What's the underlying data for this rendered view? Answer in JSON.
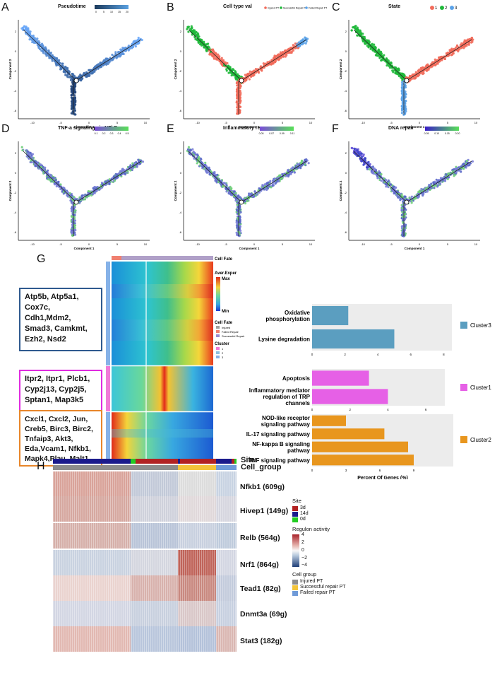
{
  "panels_top": [
    {
      "letter": "A",
      "title": "Pseudotime",
      "legend_ticks": [
        "0",
        "5",
        "10",
        "15",
        "20"
      ],
      "xlabel": "Component 1",
      "ylabel": "Component 2",
      "xticks": [
        "-10",
        "-5",
        "0",
        "5",
        "10"
      ],
      "yticks": [
        "2",
        "0",
        "-2",
        "-4",
        "-6"
      ]
    },
    {
      "letter": "B",
      "title": "Cell type val",
      "legend_items": [
        "Injured PT",
        "Successful Repair PT",
        "Failed Repair PT"
      ],
      "legend_colors": [
        "#f26b5b",
        "#1fb83a",
        "#5aa2e8"
      ],
      "xlabel": "Component 1",
      "ylabel": "Component 2",
      "xticks": [
        "-10",
        "-5",
        "0",
        "5",
        "10"
      ],
      "yticks": [
        "2",
        "0",
        "-2",
        "-4",
        "-6"
      ]
    },
    {
      "letter": "C",
      "title": "State",
      "legend_items": [
        "1",
        "2",
        "3"
      ],
      "legend_colors": [
        "#f26b5b",
        "#1fb83a",
        "#5aa2e8"
      ],
      "xlabel": "Component 1",
      "ylabel": "Component 2",
      "xticks": [
        "-10",
        "-5",
        "0",
        "5",
        "10"
      ],
      "yticks": [
        "2",
        "0",
        "-2",
        "-4",
        "-6"
      ]
    }
  ],
  "panels_mid": [
    {
      "letter": "D",
      "title": "TNF-a signaling via NFkB",
      "legend_ticks": [
        "0.1",
        "0.2",
        "0.3",
        "0.4",
        "0.5"
      ],
      "xlabel": "Component 1",
      "ylabel": "Component 2",
      "xticks": [
        "-10",
        "-5",
        "0",
        "5",
        "10"
      ],
      "yticks": [
        "2",
        "0",
        "-2",
        "-4",
        "-6"
      ]
    },
    {
      "letter": "E",
      "title": "Inflammatory response",
      "legend_ticks": [
        "0.05",
        "0.07",
        "0.09",
        "0.11"
      ],
      "xlabel": "Component 1",
      "ylabel": "Component 2",
      "xticks": [
        "-10",
        "-5",
        "0",
        "5",
        "10"
      ],
      "yticks": [
        "2",
        "0",
        "-2",
        "-4",
        "-6"
      ]
    },
    {
      "letter": "F",
      "title": "DNA repair",
      "legend_ticks": [
        "0.05",
        "0.10",
        "0.15",
        "0.20"
      ],
      "xlabel": "Component 1",
      "ylabel": "Component 2",
      "xticks": [
        "-10",
        "-5",
        "0",
        "5",
        "10"
      ],
      "yticks": [
        "2",
        "0",
        "-2",
        "-4",
        "-6"
      ]
    }
  ],
  "panel_g": {
    "letter": "G",
    "cell_fate_label": "Cell Fate",
    "aver_exper": {
      "title": "Aver.Exper",
      "max": "Max",
      "min": "Min"
    },
    "cell_fate_legend": {
      "title": "Cell Fate",
      "items": [
        "Injured",
        "Failed Repair",
        "Successful Repair"
      ]
    },
    "cluster_legend": {
      "title": "Cluster",
      "items": [
        "1",
        "2",
        "3"
      ]
    },
    "cluster_labels": [
      "Cluster 3",
      "Cluster 1",
      "Cluster 2"
    ],
    "gene_boxes": [
      {
        "lines": [
          "Atp5b, Atp5a1,",
          "Cox7c, Cdh1,Mdm2,",
          "Smad3, Camkmt,",
          "Ezh2, Nsd2"
        ],
        "color": "#2f5a8f"
      },
      {
        "lines": [
          "Itpr2, Itpr1, Plcb1,",
          "Cyp2j13, Cyp2j5,",
          "Sptan1, Map3k5"
        ],
        "color": "#e02be0"
      },
      {
        "lines": [
          "Cxcl1, Cxcl2, Jun,",
          "Creb5, Birc3, Birc2,",
          "Tnfaip3, Akt3,",
          "Eda,Vcam1, Nfkb1,",
          "Mapk4,Plau, Malt1"
        ],
        "color": "#e8862a"
      }
    ]
  },
  "chart_data": [
    {
      "type": "bar",
      "orientation": "horizontal",
      "legend": "Cluster3",
      "color": "#5b9ec0",
      "categories": [
        "Oxidative phosphorylation",
        "Lysine degradation"
      ],
      "values": [
        2.2,
        5.0
      ],
      "xticks": [
        "0",
        "2",
        "4",
        "6",
        "8"
      ],
      "xlim": [
        0,
        8.5
      ]
    },
    {
      "type": "bar",
      "orientation": "horizontal",
      "legend": "Cluster1",
      "color": "#e660e6",
      "categories": [
        "Apoptosis",
        "Inflammatory mediator regulation of TRP channels"
      ],
      "values": [
        3.0,
        4.0
      ],
      "xticks": [
        "0",
        "2",
        "4",
        "6"
      ],
      "xlim": [
        0,
        7.0
      ]
    },
    {
      "type": "bar",
      "orientation": "horizontal",
      "legend": "Cluster2",
      "color": "#e8961e",
      "categories": [
        "NOD-like receptor signaling pathway",
        "IL-17 signaling pathway",
        "NF-kappa B signaling pathway",
        "TNF signaling pathway"
      ],
      "values": [
        3.0,
        6.4,
        8.5,
        9.0
      ],
      "xticks": [
        "0",
        "3",
        "6",
        "9"
      ],
      "xlim": [
        0,
        12.5
      ],
      "xlabel": "Percent Of Genes (%)"
    }
  ],
  "panel_h": {
    "letter": "H",
    "site_label": "Site",
    "cell_group_label": "Cell_group",
    "regulons": [
      "Nfkb1 (609g)",
      "Hivep1 (149g)",
      "Relb (564g)",
      "Nrf1 (864g)",
      "Tead1 (82g)",
      "Dnmt3a (69g)",
      "Stat3 (182g)"
    ],
    "site_legend": {
      "title": "Site",
      "items": [
        "3d",
        "14d",
        "0d"
      ],
      "colors": [
        "#b22222",
        "#1a1a8c",
        "#22cc22"
      ]
    },
    "regulon_legend": {
      "title": "Regulon activity",
      "ticks": [
        "4",
        "2",
        "0",
        "−2",
        "−4"
      ]
    },
    "cell_group_legend": {
      "title": "Cell group",
      "items": [
        "Injured PT",
        "Successful repair PT",
        "Failed repair PT"
      ],
      "colors": [
        "#8c8c8c",
        "#f3c43a",
        "#6f9ad8"
      ]
    }
  }
}
